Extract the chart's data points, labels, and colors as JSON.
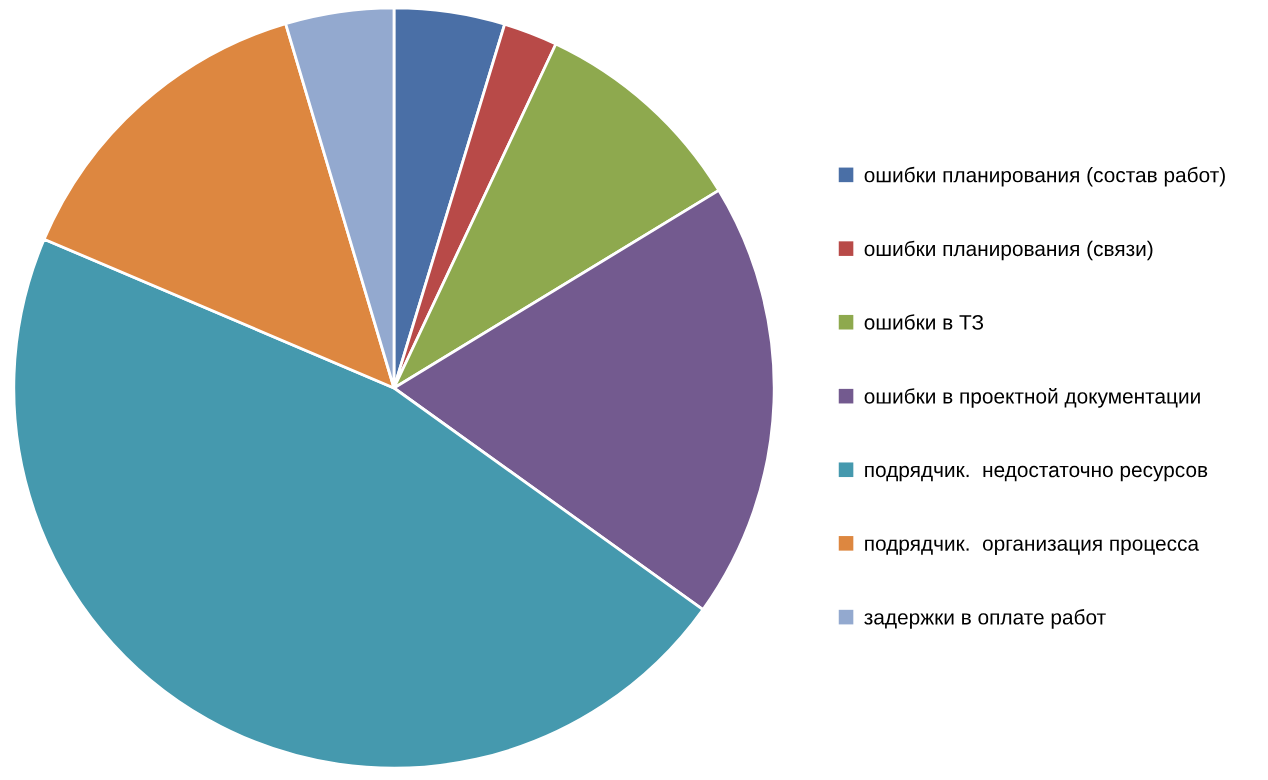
{
  "chart_data": {
    "type": "pie",
    "categories": [
      "ошибки планирования (состав работ)",
      "ошибки планирования (связи)",
      "ошибки в ТЗ",
      "ошибки в проектной документации",
      "подрядчик.  недостаточно ресурсов",
      "подрядчик.  организация процесса",
      "задержки в оплате работ"
    ],
    "values": [
      4.7,
      2.3,
      9.3,
      18.6,
      46.5,
      14.0,
      4.6
    ],
    "colors": [
      "#4a6fa6",
      "#b84a48",
      "#8ea94e",
      "#735a8f",
      "#4599ae",
      "#dd8740",
      "#93a9cf"
    ],
    "legend": "right"
  }
}
